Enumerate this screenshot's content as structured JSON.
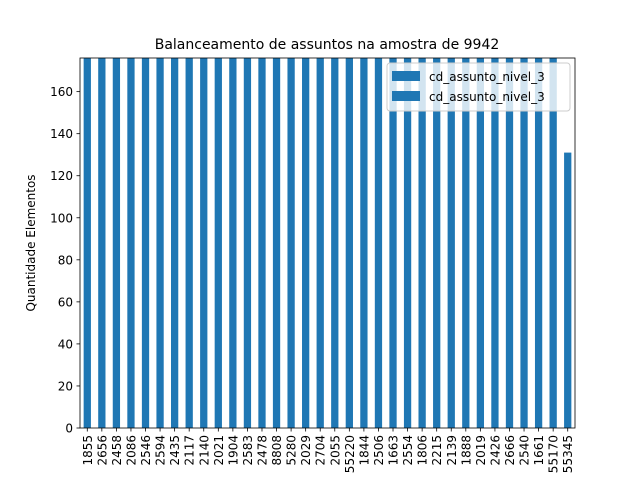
{
  "chart_data": {
    "type": "bar",
    "title": "Balanceamento de assuntos na amostra de 9942",
    "xlabel": "",
    "ylabel": "Quantidade Elementos",
    "ylim": [
      0,
      176
    ],
    "yticks": [
      0,
      20,
      40,
      60,
      80,
      100,
      120,
      140,
      160
    ],
    "grid": false,
    "legend_placement": "upper right",
    "bar_color": "#1f77b4",
    "categories": [
      "1855",
      "2656",
      "2458",
      "2086",
      "2546",
      "2594",
      "2435",
      "2117",
      "2140",
      "2021",
      "1904",
      "2583",
      "2478",
      "8808",
      "5280",
      "2029",
      "2704",
      "2055",
      "55220",
      "1844",
      "2506",
      "1663",
      "2554",
      "1806",
      "2215",
      "2139",
      "1888",
      "2019",
      "2426",
      "2666",
      "2540",
      "1661",
      "55170",
      "55345"
    ],
    "series": [
      {
        "name": "cd_assunto_nivel_3",
        "values": [
          176,
          176,
          176,
          176,
          176,
          176,
          176,
          176,
          176,
          176,
          176,
          176,
          176,
          176,
          176,
          176,
          176,
          176,
          176,
          176,
          176,
          176,
          176,
          176,
          176,
          176,
          176,
          176,
          176,
          176,
          176,
          176,
          176,
          131
        ]
      }
    ],
    "legend_entries": [
      "cd_assunto_nivel_3",
      "cd_assunto_nivel_3"
    ]
  }
}
